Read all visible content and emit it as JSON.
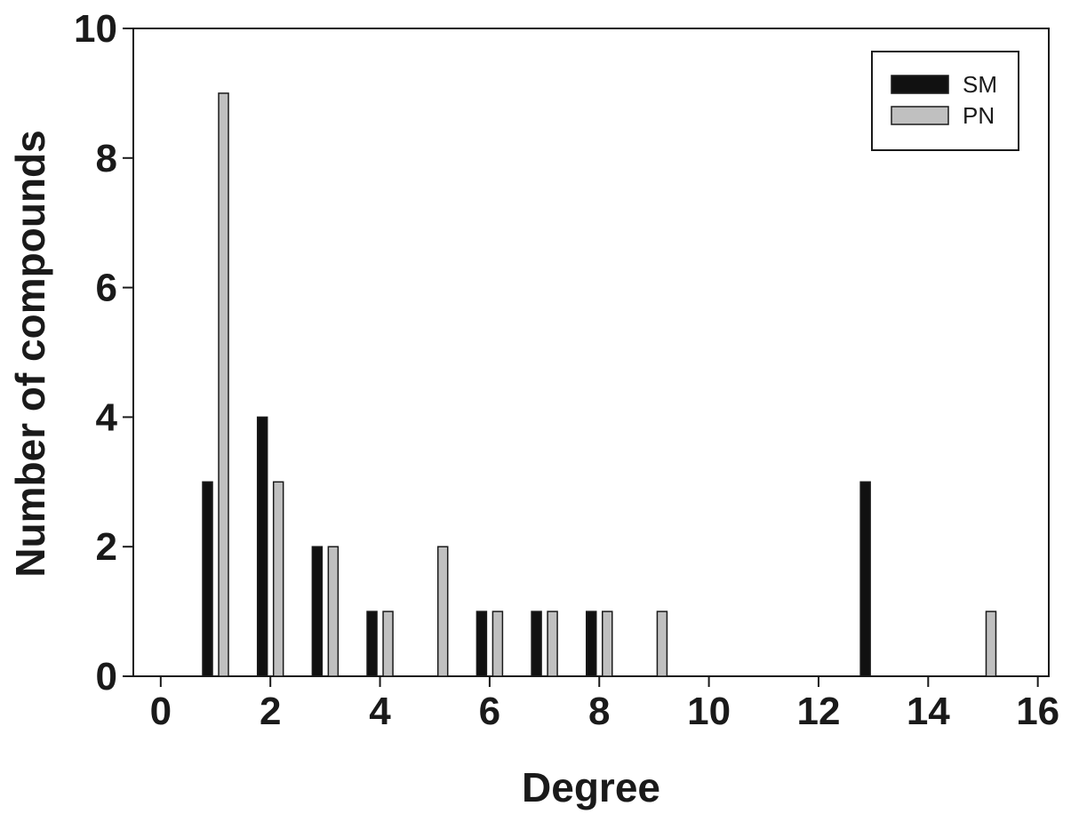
{
  "chart_data": {
    "type": "bar",
    "title": "",
    "xlabel": "Degree",
    "ylabel": "Number of compounds",
    "xlim": [
      -0.5,
      16.2
    ],
    "ylim": [
      0,
      10
    ],
    "x_ticks": [
      0,
      2,
      4,
      6,
      8,
      10,
      12,
      14,
      16
    ],
    "y_ticks": [
      0,
      2,
      4,
      6,
      8,
      10
    ],
    "grid": false,
    "legend_position": "top-right",
    "series": [
      {
        "name": "SM",
        "color": "#111111",
        "points": [
          {
            "x": 1,
            "y": 3
          },
          {
            "x": 2,
            "y": 4
          },
          {
            "x": 3,
            "y": 2
          },
          {
            "x": 4,
            "y": 1
          },
          {
            "x": 6,
            "y": 1
          },
          {
            "x": 7,
            "y": 1
          },
          {
            "x": 8,
            "y": 1
          },
          {
            "x": 13,
            "y": 3
          }
        ]
      },
      {
        "name": "PN",
        "color": "#c0c0c0",
        "points": [
          {
            "x": 1,
            "y": 9
          },
          {
            "x": 2,
            "y": 3
          },
          {
            "x": 3,
            "y": 2
          },
          {
            "x": 4,
            "y": 1
          },
          {
            "x": 5,
            "y": 2
          },
          {
            "x": 6,
            "y": 1
          },
          {
            "x": 7,
            "y": 1
          },
          {
            "x": 8,
            "y": 1
          },
          {
            "x": 9,
            "y": 1
          },
          {
            "x": 15,
            "y": 1
          }
        ]
      }
    ]
  }
}
